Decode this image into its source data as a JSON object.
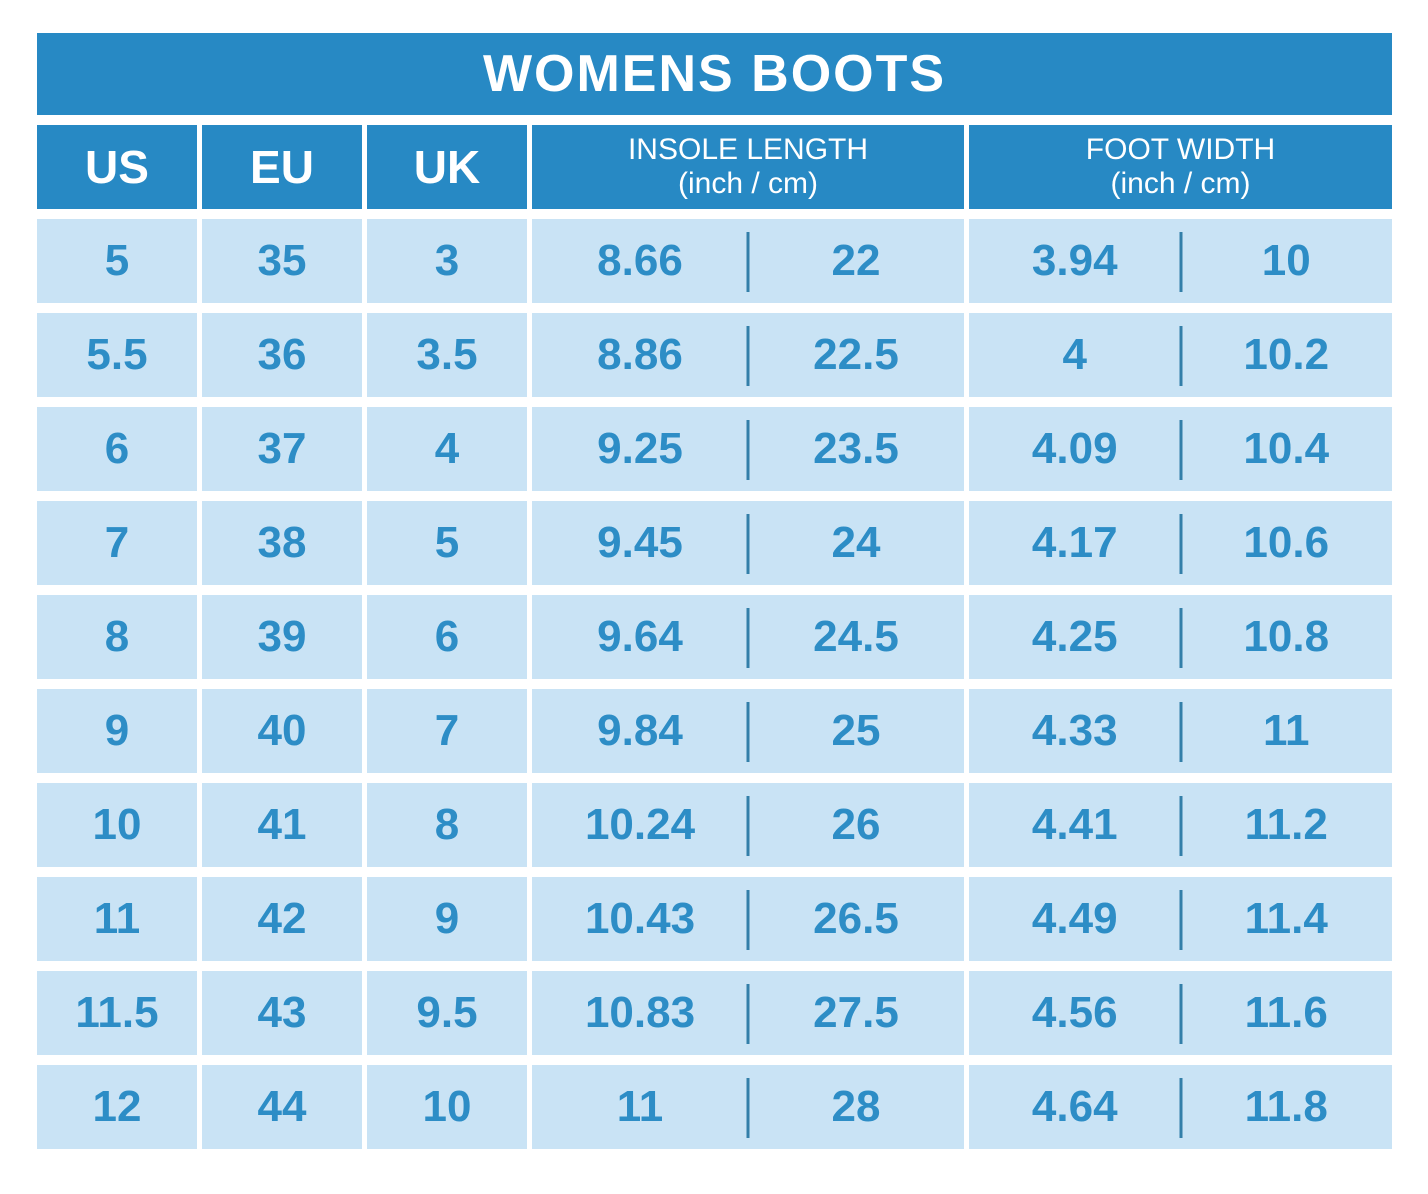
{
  "table": {
    "title": "WOMENS BOOTS",
    "columns": {
      "us": "US",
      "eu": "EU",
      "uk": "UK",
      "insole_line1": "INSOLE LENGTH",
      "insole_line2": "(inch / cm)",
      "foot_line1": "FOOT WIDTH",
      "foot_line2": "(inch / cm)"
    },
    "rows": [
      {
        "us": "5",
        "eu": "35",
        "uk": "3",
        "insole_inch": "8.66",
        "insole_cm": "22",
        "width_inch": "3.94",
        "width_cm": "10"
      },
      {
        "us": "5.5",
        "eu": "36",
        "uk": "3.5",
        "insole_inch": "8.86",
        "insole_cm": "22.5",
        "width_inch": "4",
        "width_cm": "10.2"
      },
      {
        "us": "6",
        "eu": "37",
        "uk": "4",
        "insole_inch": "9.25",
        "insole_cm": "23.5",
        "width_inch": "4.09",
        "width_cm": "10.4"
      },
      {
        "us": "7",
        "eu": "38",
        "uk": "5",
        "insole_inch": "9.45",
        "insole_cm": "24",
        "width_inch": "4.17",
        "width_cm": "10.6"
      },
      {
        "us": "8",
        "eu": "39",
        "uk": "6",
        "insole_inch": "9.64",
        "insole_cm": "24.5",
        "width_inch": "4.25",
        "width_cm": "10.8"
      },
      {
        "us": "9",
        "eu": "40",
        "uk": "7",
        "insole_inch": "9.84",
        "insole_cm": "25",
        "width_inch": "4.33",
        "width_cm": "11"
      },
      {
        "us": "10",
        "eu": "41",
        "uk": "8",
        "insole_inch": "10.24",
        "insole_cm": "26",
        "width_inch": "4.41",
        "width_cm": "11.2"
      },
      {
        "us": "11",
        "eu": "42",
        "uk": "9",
        "insole_inch": "10.43",
        "insole_cm": "26.5",
        "width_inch": "4.49",
        "width_cm": "11.4"
      },
      {
        "us": "11.5",
        "eu": "43",
        "uk": "9.5",
        "insole_inch": "10.83",
        "insole_cm": "27.5",
        "width_inch": "4.56",
        "width_cm": "11.6"
      },
      {
        "us": "12",
        "eu": "44",
        "uk": "10",
        "insole_inch": "11",
        "insole_cm": "28",
        "width_inch": "4.64",
        "width_cm": "11.8"
      }
    ],
    "colors": {
      "header_bg": "#2789c4",
      "cell_bg": "#c9e3f5",
      "text_blue": "#2d8dc6",
      "divider": "#337fa9",
      "header_text": "#ffffff"
    }
  },
  "chart_data": {
    "type": "table",
    "title": "WOMENS BOOTS",
    "columns": [
      "US",
      "EU",
      "UK",
      "INSOLE LENGTH (inch / cm)",
      "FOOT WIDTH (inch / cm)"
    ],
    "rows": [
      [
        "5",
        "35",
        "3",
        "8.66 / 22",
        "3.94 / 10"
      ],
      [
        "5.5",
        "36",
        "3.5",
        "8.86 / 22.5",
        "4 / 10.2"
      ],
      [
        "6",
        "37",
        "4",
        "9.25 / 23.5",
        "4.09 / 10.4"
      ],
      [
        "7",
        "38",
        "5",
        "9.45 / 24",
        "4.17 / 10.6"
      ],
      [
        "8",
        "39",
        "6",
        "9.64 / 24.5",
        "4.25 / 10.8"
      ],
      [
        "9",
        "40",
        "7",
        "9.84 / 25",
        "4.33 / 11"
      ],
      [
        "10",
        "41",
        "8",
        "10.24 / 26",
        "4.41 / 11.2"
      ],
      [
        "11",
        "42",
        "9",
        "10.43 / 26.5",
        "4.49 / 11.4"
      ],
      [
        "11.5",
        "43",
        "9.5",
        "10.83 / 27.5",
        "4.56 / 11.6"
      ],
      [
        "12",
        "44",
        "10",
        "11 / 28",
        "4.64 / 11.8"
      ]
    ]
  }
}
